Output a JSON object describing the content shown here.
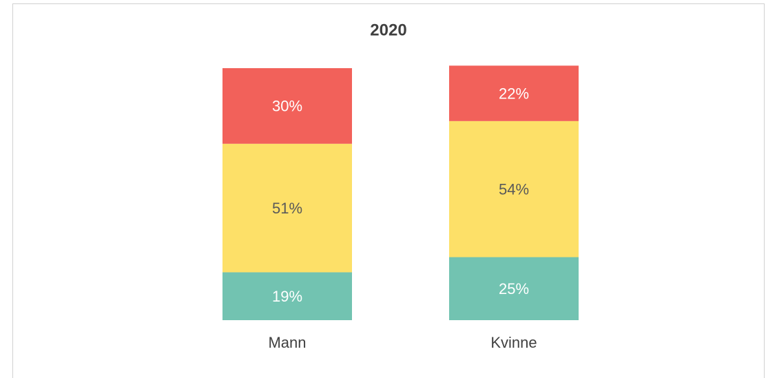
{
  "chart_data": {
    "type": "stacked_bar",
    "title": "2020",
    "categories": [
      "Mann",
      "Kvinne"
    ],
    "ylim": [
      0,
      100
    ],
    "series": [
      {
        "color": "#72c3b1",
        "label_color": "#ffffff",
        "values": [
          19,
          25
        ],
        "value_labels": [
          "19%",
          "25%"
        ]
      },
      {
        "color": "#fde068",
        "label_color": "#595959",
        "values": [
          51,
          54
        ],
        "value_labels": [
          "51%",
          "54%"
        ]
      },
      {
        "color": "#f2615a",
        "label_color": "#ffffff",
        "values": [
          30,
          22
        ],
        "value_labels": [
          "30%",
          "22%"
        ]
      }
    ]
  }
}
